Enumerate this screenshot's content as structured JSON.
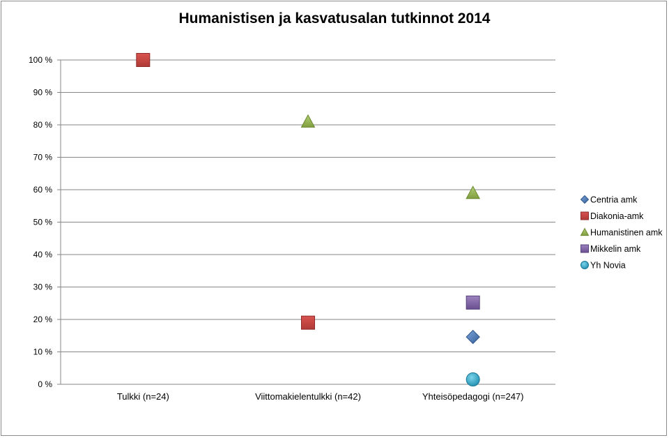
{
  "chart_data": {
    "type": "scatter",
    "title": "Humanistisen  ja kasvatusalan tutkinnot 2014",
    "xlabel": "",
    "ylabel": "",
    "ylim": [
      0,
      100
    ],
    "yticks": [
      "0 %",
      "10 %",
      "20 %",
      "30 %",
      "40 %",
      "50 %",
      "60 %",
      "70 %",
      "80 %",
      "90 %",
      "100 %"
    ],
    "categories": [
      "Tulkki (n=24)",
      "Viittomakielentulkki (n=42)",
      "Yhteisöpedagogi (n=247)"
    ],
    "grid": true,
    "legend_position": "right",
    "series": [
      {
        "name": "Centria amk",
        "marker": "diamond",
        "color": "#4a7ebb",
        "values": [
          null,
          null,
          14.6
        ]
      },
      {
        "name": "Diakonia-amk",
        "marker": "square",
        "color": "#c0504d",
        "values": [
          100,
          19,
          null
        ]
      },
      {
        "name": "Humanistinen amk",
        "marker": "triangle",
        "color": "#9bbb59",
        "values": [
          null,
          81,
          59
        ]
      },
      {
        "name": "Mikkelin amk",
        "marker": "square",
        "color": "#8064a2",
        "values": [
          null,
          null,
          25.2
        ]
      },
      {
        "name": "Yh Novia",
        "marker": "circle",
        "color": "#2fa7c7",
        "values": [
          null,
          null,
          1.5
        ]
      }
    ]
  }
}
